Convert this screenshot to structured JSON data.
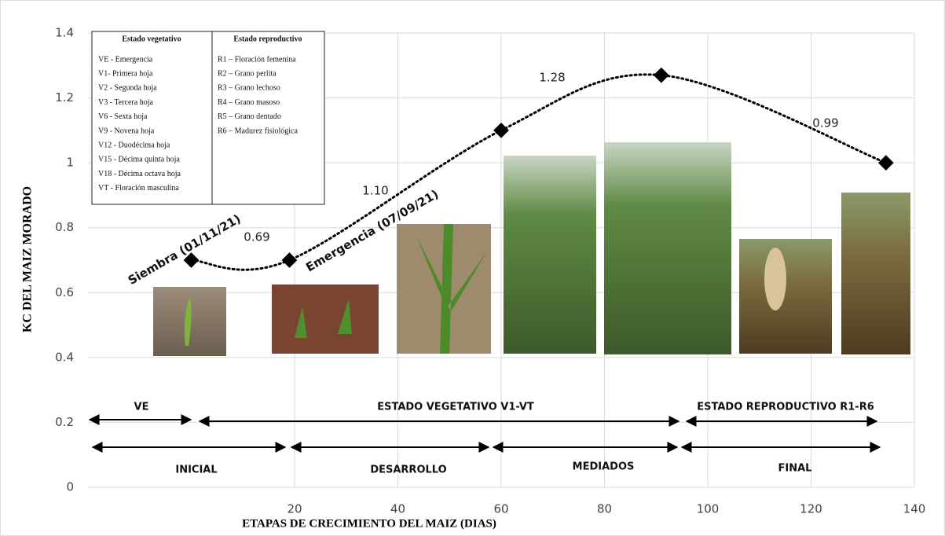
{
  "chart_data": {
    "type": "line",
    "x_label": "ETAPAS DE CRECIMIENTO DEL MAIZ (DIAS)",
    "y_label": "KC DEL MAIZ MORADO",
    "xlim": [
      -20,
      140
    ],
    "xticks": [
      20,
      40,
      60,
      80,
      100,
      120,
      140
    ],
    "ylim": [
      0,
      1.4
    ],
    "yticks": [
      0,
      0.2,
      0.4,
      0.6,
      0.8,
      1,
      1.2,
      1.4
    ],
    "grid": true,
    "series": [
      {
        "color": "#000000",
        "x": [
          0,
          19,
          60,
          91,
          134.5
        ],
        "values": [
          0.7,
          0.7,
          1.1,
          1.27,
          1.0
        ]
      }
    ],
    "annotations": [
      "0.69",
      "1.10",
      "1.28",
      "0.99"
    ],
    "point_labels": [
      "Siembra (01/11/21)",
      "Emergencia (07/09/21)"
    ],
    "stages_top": [
      "VE",
      "ESTADO VEGETATIVO  V1-VT",
      "ESTADO REPRODUCTIVO R1-R6"
    ],
    "stages_bottom": [
      "INICIAL",
      "DESARROLLO",
      "MEDIADOS",
      "FINAL"
    ],
    "legend_table": {
      "headers": [
        "Estado vegetativo",
        "Estado reproductivo"
      ],
      "vegetative": [
        "VE - Emergencia",
        "V1- Primera hoja",
        "V2 - Segunda hoja",
        "V3 - Tercera hoja",
        "V6 - Sexta hoja",
        "V9 - Novena hoja",
        "V12 - Duodécima hoja",
        "V15 - Décima quinta hoja",
        "V18 - Décima octava hoja",
        "VT - Floración masculina"
      ],
      "reproductive": [
        "R1 – Floración femenina",
        "R2 – Grano perlita",
        "R3 – Grano lechoso",
        "R4 – Grano masoso",
        "R5 – Grano dentado",
        "R6 – Madurez fisiológica"
      ]
    }
  }
}
